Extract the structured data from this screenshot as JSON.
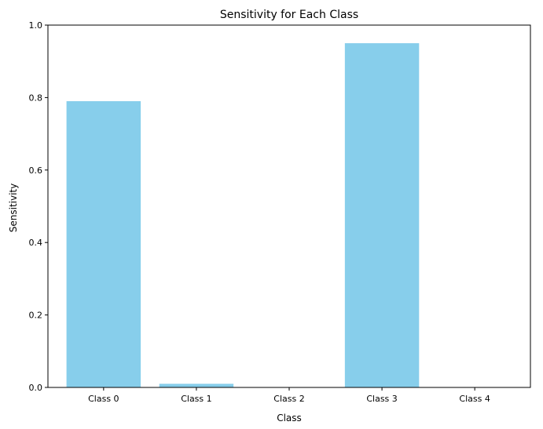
{
  "chart_data": {
    "type": "bar",
    "title": "Sensitivity for Each Class",
    "xlabel": "Class",
    "ylabel": "Sensitivity",
    "categories": [
      "Class 0",
      "Class 1",
      "Class 2",
      "Class 3",
      "Class 4"
    ],
    "values": [
      0.79,
      0.01,
      0.0,
      0.95,
      0.0
    ],
    "ylim": [
      0,
      1.0
    ],
    "yticks": [
      "0.0",
      "0.2",
      "0.4",
      "0.6",
      "0.8",
      "1.0"
    ],
    "bar_color": "#87ceeb",
    "grid": false,
    "legend": "none"
  }
}
